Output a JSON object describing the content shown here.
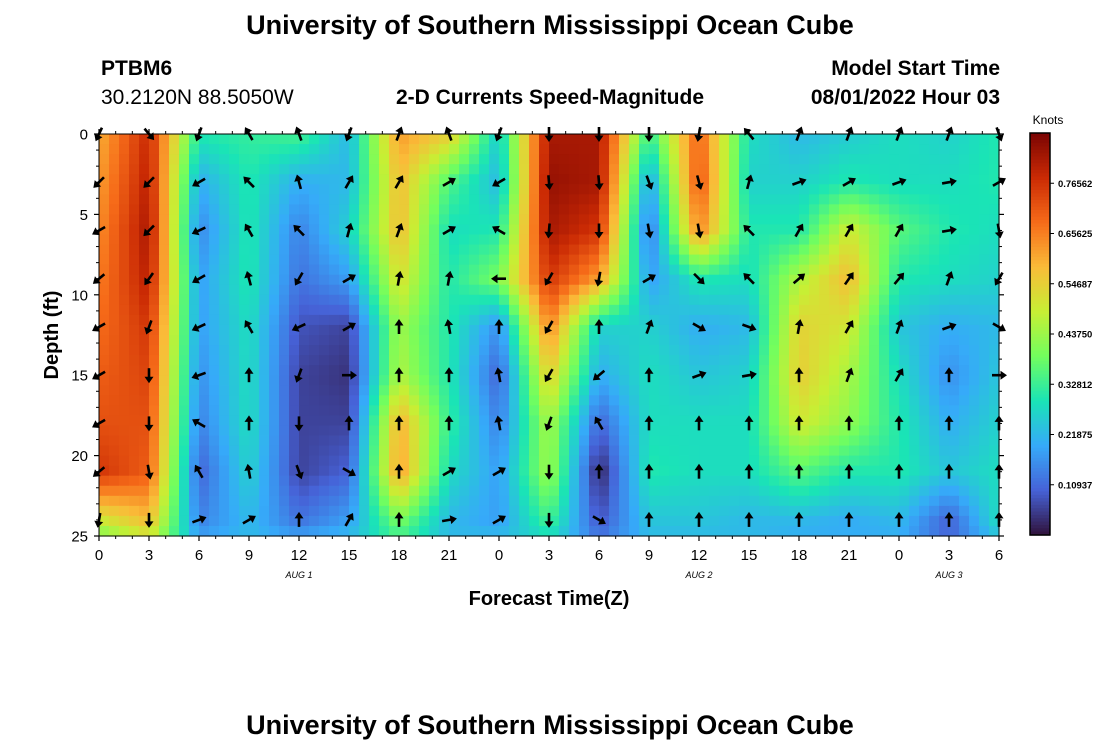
{
  "page": {
    "title": "University of Southern Mississippi Ocean Cube",
    "station_id": "PTBM6",
    "station_coords": "30.2120N  88.5050W",
    "plot_subtitle": "2-D Currents Speed-Magnitude",
    "model_start_label": "Model Start Time",
    "model_start_value": "08/01/2022 Hour 03",
    "footer_title": "University of Southern Mississippi Ocean Cube"
  },
  "chart_data": {
    "type": "heatmap",
    "title": "2-D Currents Speed-Magnitude",
    "xlabel": "Forecast Time(Z)",
    "ylabel": "Depth (ft)",
    "x_range": [
      0,
      54
    ],
    "y_range": [
      0,
      25
    ],
    "y_inverted": true,
    "x_ticks": [
      0,
      3,
      6,
      9,
      12,
      15,
      18,
      21,
      24,
      27,
      30,
      33,
      36,
      39,
      42,
      45,
      48,
      51,
      54
    ],
    "x_tick_labels": [
      "0",
      "3",
      "6",
      "9",
      "12",
      "15",
      "18",
      "21",
      "0",
      "3",
      "6",
      "9",
      "12",
      "15",
      "18",
      "21",
      "0",
      "3",
      "6"
    ],
    "y_ticks": [
      0,
      5,
      10,
      15,
      20,
      25
    ],
    "y_tick_labels": [
      "0",
      "5",
      "10",
      "15",
      "20",
      "25"
    ],
    "day_labels": [
      {
        "text": "AUG 1",
        "x": 12
      },
      {
        "text": "AUG 2",
        "x": 36
      },
      {
        "text": "AUG 3",
        "x": 51
      }
    ],
    "colorbar": {
      "title": "Knots",
      "min": 0.0,
      "max": 0.875,
      "tick_values": [
        0.10937,
        0.21875,
        0.32812,
        0.4375,
        0.54687,
        0.65625,
        0.76562
      ],
      "tick_labels": [
        "0.10937",
        "0.21875",
        "0.32812",
        "0.43750",
        "0.54687",
        "0.65625",
        "0.76562"
      ],
      "colors": [
        "#30123b",
        "#4662d7",
        "#36aaf9",
        "#1ae4b6",
        "#72fe5e",
        "#c7ef34",
        "#fabb38",
        "#f66b19",
        "#ca2a04",
        "#7a0403"
      ]
    },
    "grid_times": [
      0,
      3,
      6,
      9,
      12,
      15,
      18,
      21,
      24,
      27,
      30,
      33,
      36,
      39,
      42,
      45,
      48,
      51,
      54
    ],
    "grid_depths": [
      0,
      3,
      6,
      9,
      12,
      15,
      18,
      21,
      24,
      25
    ],
    "speed_knots": [
      [
        0.6,
        0.78,
        0.3,
        0.32,
        0.34,
        0.22,
        0.62,
        0.55,
        0.25,
        0.82,
        0.82,
        0.32,
        0.7,
        0.28,
        0.22,
        0.25,
        0.28,
        0.26,
        0.3
      ],
      [
        0.62,
        0.8,
        0.2,
        0.3,
        0.2,
        0.22,
        0.58,
        0.35,
        0.22,
        0.84,
        0.82,
        0.18,
        0.72,
        0.26,
        0.26,
        0.3,
        0.28,
        0.28,
        0.3
      ],
      [
        0.64,
        0.82,
        0.15,
        0.3,
        0.14,
        0.26,
        0.58,
        0.28,
        0.3,
        0.82,
        0.76,
        0.12,
        0.65,
        0.3,
        0.3,
        0.5,
        0.36,
        0.3,
        0.28
      ],
      [
        0.66,
        0.8,
        0.18,
        0.3,
        0.12,
        0.18,
        0.52,
        0.3,
        0.4,
        0.76,
        0.62,
        0.18,
        0.3,
        0.28,
        0.46,
        0.58,
        0.3,
        0.28,
        0.26
      ],
      [
        0.68,
        0.76,
        0.18,
        0.28,
        0.08,
        0.06,
        0.44,
        0.3,
        0.16,
        0.65,
        0.26,
        0.26,
        0.2,
        0.22,
        0.54,
        0.5,
        0.24,
        0.2,
        0.22
      ],
      [
        0.7,
        0.74,
        0.16,
        0.28,
        0.06,
        0.04,
        0.46,
        0.3,
        0.1,
        0.55,
        0.2,
        0.28,
        0.24,
        0.26,
        0.55,
        0.45,
        0.28,
        0.16,
        0.24
      ],
      [
        0.72,
        0.72,
        0.14,
        0.28,
        0.06,
        0.06,
        0.6,
        0.32,
        0.14,
        0.45,
        0.1,
        0.28,
        0.28,
        0.28,
        0.5,
        0.42,
        0.3,
        0.2,
        0.26
      ],
      [
        0.76,
        0.7,
        0.1,
        0.26,
        0.06,
        0.1,
        0.62,
        0.28,
        0.18,
        0.44,
        0.02,
        0.3,
        0.28,
        0.28,
        0.36,
        0.3,
        0.3,
        0.24,
        0.28
      ],
      [
        0.5,
        0.58,
        0.14,
        0.22,
        0.12,
        0.18,
        0.4,
        0.22,
        0.18,
        0.34,
        0.08,
        0.24,
        0.24,
        0.22,
        0.22,
        0.2,
        0.22,
        0.1,
        0.28
      ],
      [
        0.4,
        0.5,
        0.18,
        0.22,
        0.18,
        0.22,
        0.34,
        0.22,
        0.22,
        0.28,
        0.12,
        0.22,
        0.22,
        0.22,
        0.2,
        0.2,
        0.2,
        0.1,
        0.24
      ]
    ],
    "direction_deg": [
      [
        205,
        140,
        200,
        330,
        340,
        200,
        20,
        340,
        200,
        180,
        180,
        180,
        190,
        320,
        20,
        20,
        20,
        20,
        160
      ],
      [
        225,
        225,
        240,
        315,
        345,
        30,
        30,
        60,
        240,
        175,
        175,
        160,
        165,
        15,
        70,
        60,
        70,
        80,
        60
      ],
      [
        240,
        225,
        245,
        330,
        315,
        15,
        20,
        60,
        300,
        185,
        180,
        170,
        170,
        315,
        30,
        30,
        30,
        80,
        170
      ],
      [
        230,
        215,
        240,
        345,
        210,
        60,
        10,
        10,
        270,
        210,
        190,
        60,
        135,
        315,
        50,
        35,
        40,
        20,
        210
      ],
      [
        240,
        200,
        245,
        330,
        245,
        60,
        0,
        350,
        0,
        210,
        0,
        20,
        120,
        110,
        10,
        30,
        20,
        70,
        120
      ],
      [
        240,
        180,
        250,
        0,
        200,
        90,
        0,
        0,
        350,
        210,
        230,
        0,
        70,
        80,
        0,
        20,
        30,
        0,
        90
      ],
      [
        240,
        180,
        300,
        0,
        180,
        0,
        0,
        0,
        350,
        200,
        330,
        0,
        0,
        0,
        0,
        0,
        0,
        0,
        0
      ],
      [
        230,
        170,
        330,
        350,
        160,
        120,
        0,
        60,
        60,
        180,
        0,
        0,
        0,
        0,
        0,
        0,
        0,
        0,
        0
      ],
      [
        190,
        180,
        70,
        60,
        0,
        30,
        0,
        80,
        60,
        180,
        120,
        0,
        0,
        0,
        0,
        0,
        0,
        0,
        0
      ]
    ]
  }
}
